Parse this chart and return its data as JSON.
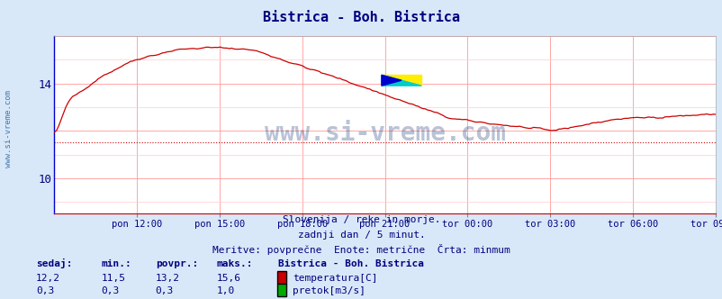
{
  "title": "Bistrica - Boh. Bistrica",
  "title_color": "#000080",
  "bg_color": "#d8e8f8",
  "plot_bg_color": "#ffffff",
  "grid_color_main": "#ff9999",
  "grid_color_minor": "#ffcccc",
  "x_labels": [
    "pon 12:00",
    "pon 15:00",
    "pon 18:00",
    "pon 21:00",
    "tor 00:00",
    "tor 03:00",
    "tor 06:00",
    "tor 09:00"
  ],
  "x_label_color": "#000080",
  "y_min": 8.5,
  "y_max": 16.0,
  "y_ticks": [
    10,
    14
  ],
  "temp_color": "#cc0000",
  "flow_color": "#00aa00",
  "min_line_color": "#cc0000",
  "sidebar_color": "#4477aa",
  "sidebar_text": "www.si-vreme.com",
  "watermark_text": "www.si-vreme.com",
  "watermark_color": "#1a3a7a",
  "footer_line1": "Slovenija / reke in morje.",
  "footer_line2": "zadnji dan / 5 minut.",
  "footer_line3": "Meritve: povprečne  Enote: metrične  Črta: minmum",
  "footer_color": "#000080",
  "legend_title": "Bistrica - Boh. Bistrica",
  "label_sedaj": "sedaj:",
  "label_min": "min.:",
  "label_povpr": "povpr.:",
  "label_maks": "maks.:",
  "temp_sedaj": "12,2",
  "temp_min": "11,5",
  "temp_povpr": "13,2",
  "temp_maks": "15,6",
  "flow_sedaj": "0,3",
  "flow_min": "0,3",
  "flow_povpr": "0,3",
  "flow_maks": "1,0",
  "legend_temp": "temperatura[C]",
  "legend_flow": "pretok[m3/s]",
  "num_points": 288,
  "temp_min_val": 11.5,
  "flow_scale": 1.0,
  "flow_base": 0.3
}
